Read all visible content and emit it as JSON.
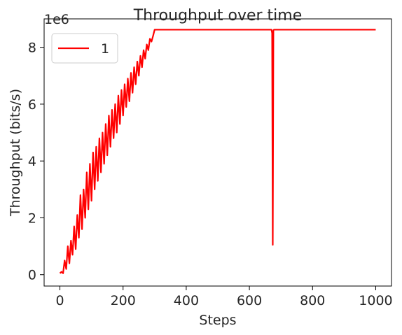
{
  "chart_data": {
    "type": "line",
    "title": "Throughput over time",
    "xlabel": "Steps",
    "ylabel": "Throughput (bits/s)",
    "y_offset_label": "1e6",
    "xlim": [
      -50,
      1050
    ],
    "ylim": [
      -0.4,
      9.0
    ],
    "y_unit_multiplier": 1000000,
    "x_ticks": [
      0,
      200,
      400,
      600,
      800,
      1000
    ],
    "y_ticks": [
      0,
      2,
      4,
      6,
      8
    ],
    "grid": false,
    "legend_position": "upper-left",
    "series": [
      {
        "name": "1",
        "color": "#ff0000",
        "x": [
          0,
          5,
          10,
          15,
          20,
          25,
          30,
          35,
          40,
          45,
          50,
          55,
          60,
          65,
          70,
          75,
          80,
          85,
          90,
          95,
          100,
          105,
          110,
          115,
          120,
          125,
          130,
          135,
          140,
          145,
          150,
          155,
          160,
          165,
          170,
          175,
          180,
          185,
          190,
          195,
          200,
          205,
          210,
          215,
          220,
          225,
          230,
          235,
          240,
          245,
          250,
          255,
          260,
          265,
          270,
          275,
          280,
          285,
          290,
          295,
          300,
          350,
          400,
          450,
          500,
          550,
          600,
          650,
          670,
          672,
          674,
          676,
          678,
          680,
          700,
          800,
          900,
          1000
        ],
        "values": [
          0.05,
          0.1,
          0.05,
          0.5,
          0.2,
          1.0,
          0.4,
          1.2,
          0.7,
          1.7,
          0.9,
          2.1,
          1.3,
          2.8,
          1.6,
          3.0,
          2.0,
          3.6,
          2.3,
          3.9,
          2.6,
          4.3,
          3.0,
          4.5,
          3.3,
          4.8,
          3.6,
          5.0,
          3.9,
          5.3,
          4.2,
          5.6,
          4.5,
          5.8,
          4.8,
          6.0,
          5.0,
          6.3,
          5.3,
          6.5,
          5.6,
          6.7,
          5.9,
          6.9,
          6.1,
          7.1,
          6.4,
          7.3,
          6.7,
          7.5,
          7.0,
          7.7,
          7.3,
          7.9,
          7.6,
          8.1,
          7.9,
          8.3,
          8.2,
          8.4,
          8.62,
          8.62,
          8.62,
          8.62,
          8.62,
          8.62,
          8.62,
          8.62,
          8.62,
          8.5,
          1.05,
          8.6,
          8.62,
          8.62,
          8.62,
          8.62,
          8.62,
          8.62
        ]
      }
    ]
  }
}
